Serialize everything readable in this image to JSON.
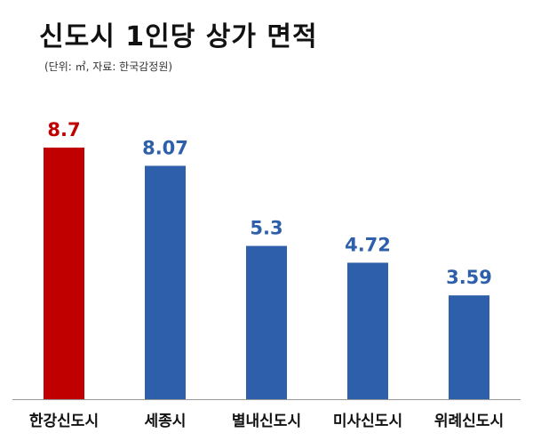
{
  "title": "신도시 1인당 상가 면적",
  "subtitle": "(단위: ㎡, 자료: 한국감정원)",
  "colors": {
    "highlight": "#C00000",
    "default": "#2E5FAA",
    "axis": "#999999"
  },
  "chart_data": {
    "type": "bar",
    "title": "신도시 1인당 상가 면적",
    "subtitle": "(단위: ㎡, 자료: 한국감정원)",
    "categories": [
      "한강신도시",
      "세종시",
      "별내신도시",
      "미사신도시",
      "위례신도시"
    ],
    "values": [
      8.7,
      8.07,
      5.3,
      4.72,
      3.59
    ],
    "value_labels": [
      "8.7",
      "8.07",
      "5.3",
      "4.72",
      "3.59"
    ],
    "highlight_index": 0,
    "xlabel": "",
    "ylabel": "",
    "ylim": [
      0,
      8.7
    ],
    "grid": false,
    "legend": "none"
  }
}
